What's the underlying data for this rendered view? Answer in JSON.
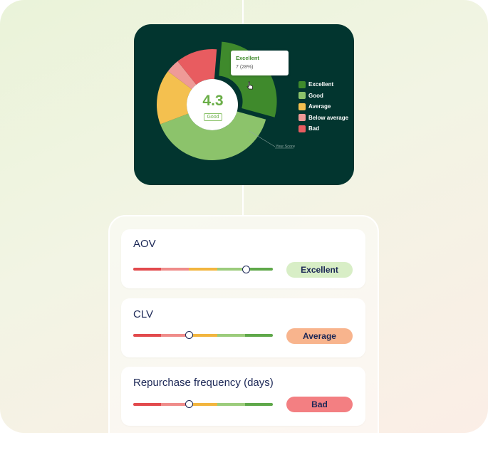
{
  "colors": {
    "excellent": "#3f8a2c",
    "good": "#8cc36b",
    "average": "#f4c04f",
    "below_average": "#ef9a97",
    "bad": "#e85c60",
    "card_bg": "#02352f",
    "navy_text": "#1b2756"
  },
  "chart_data": {
    "type": "pie",
    "categories": [
      "Excellent",
      "Good",
      "Average",
      "Below average",
      "Bad"
    ],
    "values": [
      7,
      10,
      4,
      1,
      3
    ],
    "percent_shown": {
      "Excellent": "28%"
    },
    "highlighted": "Excellent",
    "legend_position": "right",
    "donut_center_value": "4.3",
    "donut_center_label": "Good"
  },
  "chart": {
    "tooltip": {
      "title": "Excellent",
      "value": "7 (28%)"
    },
    "legend": [
      {
        "label": "Excellent",
        "color": "#3f8a2c"
      },
      {
        "label": "Good",
        "color": "#8cc36b"
      },
      {
        "label": "Average",
        "color": "#f4c04f"
      },
      {
        "label": "Below average",
        "color": "#ef9a97"
      },
      {
        "label": "Bad",
        "color": "#e85c60"
      }
    ],
    "score": "4.3",
    "score_label": "Good",
    "annotation": "Your Score"
  },
  "metrics": [
    {
      "title": "AOV",
      "rating": "Excellent",
      "rating_color": "#d8eec6",
      "slider_position": 0.81
    },
    {
      "title": "CLV",
      "rating": "Average",
      "rating_color": "#f8b48d",
      "slider_position": 0.4
    },
    {
      "title": "Repurchase frequency (days)",
      "rating": "Bad",
      "rating_color": "#f37f82",
      "slider_position": 0.4
    }
  ],
  "slider_segments": [
    "#e24a4d",
    "#ef8c8a",
    "#f2b53e",
    "#9ccc7c",
    "#5fa84a"
  ]
}
